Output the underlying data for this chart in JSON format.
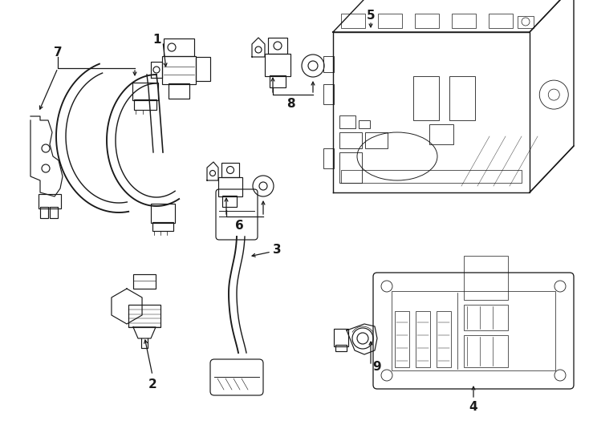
{
  "bg_color": "#ffffff",
  "line_color": "#1a1a1a",
  "figsize": [
    7.34,
    5.4
  ],
  "dpi": 100,
  "lw": 0.85
}
